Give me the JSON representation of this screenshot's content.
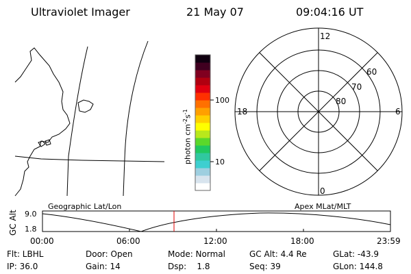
{
  "header": {
    "instrument": "Ultraviolet Imager",
    "date": "21 May 07",
    "time": "09:04:16 UT"
  },
  "colorbar": {
    "unit_label": "photon cm",
    "unit_exp1": "-2",
    "unit_mid": "s",
    "unit_exp2": "-1",
    "tick_100": "100",
    "tick_10": "10",
    "colors": [
      "#ffffff",
      "#d8e4ee",
      "#9ecfe0",
      "#3ecfd0",
      "#30c8a0",
      "#20c860",
      "#5bd82a",
      "#b8e81c",
      "#ffff00",
      "#ffd000",
      "#ffa000",
      "#ff7000",
      "#ff3000",
      "#e00010",
      "#b00010",
      "#800020",
      "#400020",
      "#100010"
    ]
  },
  "polar": {
    "label_12": "12",
    "label_18": "18",
    "label_6": "6",
    "label_0": "0",
    "label_60": "60",
    "label_70": "70",
    "label_80": "80"
  },
  "timeline": {
    "left_title": "Geographic Lat/Lon",
    "right_title": "Apex MLat/MLT",
    "ylabel": "GC Alt",
    "y_top": "9.0",
    "y_bottom": "1.8",
    "x_ticks": [
      "00:00",
      "06:00",
      "12:00",
      "18:00",
      "23:59"
    ],
    "current_time_fraction": 0.378
  },
  "info": {
    "filter": "Flt: LBHL",
    "door": "Door: Open",
    "mode": "Mode: Normal",
    "gc_alt": "GC Alt: 4.4 Re",
    "glat": "GLat: -43.9",
    "ip": "IP: 36.0",
    "gain": "Gain: 14",
    "dsp": "Dsp:    1.8",
    "seq": "Seq: 39",
    "glon": "GLon: 144.8"
  }
}
